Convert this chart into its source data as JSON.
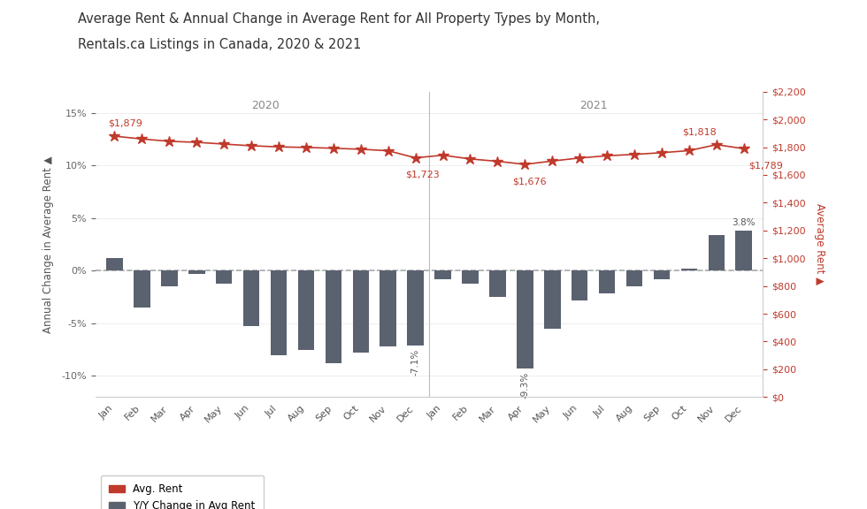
{
  "title_line1": "Average Rent & Annual Change in Average Rent for All Property Types by Month,",
  "title_line2": "Rentals.ca Listings in Canada, 2020 & 2021",
  "months_2020": [
    "Jan",
    "Feb",
    "Mar",
    "Apr",
    "May",
    "Jun",
    "Jul",
    "Aug",
    "Sep",
    "Oct",
    "Nov",
    "Dec"
  ],
  "months_2021": [
    "Jan",
    "Feb",
    "Mar",
    "Apr",
    "May",
    "Jun",
    "Jul",
    "Aug",
    "Sep",
    "Oct",
    "Nov",
    "Dec"
  ],
  "yoy_change": [
    1.2,
    -3.5,
    -1.5,
    -0.3,
    -1.2,
    -5.3,
    -8.0,
    -7.5,
    -8.8,
    -7.8,
    -7.2,
    -7.1,
    -0.8,
    -1.2,
    -2.5,
    -9.3,
    -5.5,
    -2.8,
    -2.2,
    -1.5,
    -0.8,
    0.2,
    3.4,
    3.8
  ],
  "avg_rent": [
    1879,
    1859,
    1842,
    1835,
    1822,
    1810,
    1802,
    1798,
    1792,
    1785,
    1774,
    1723,
    1742,
    1715,
    1698,
    1676,
    1700,
    1722,
    1738,
    1748,
    1760,
    1775,
    1818,
    1789
  ],
  "bar_color": "#5a6270",
  "line_color": "#c0392b",
  "dashed_line_color": "#aaaaaa",
  "background_color": "#ffffff",
  "plot_bg_color": "#ffffff",
  "ylabel_left": "Annual Change in Average Rent ▲",
  "ylabel_right": "Average Rent ▲",
  "ylim_left": [
    -12,
    17
  ],
  "ylim_right": [
    0,
    2200
  ],
  "yticks_left": [
    -10,
    -5,
    0,
    5,
    10,
    15
  ],
  "year_labels": [
    "2020",
    "2021"
  ],
  "annotated_rent_indices": [
    0,
    11,
    15,
    22,
    23
  ],
  "annotated_rent_values": [
    "$1,879",
    "$1,723",
    "$1,676",
    "$1,818",
    "$1,789"
  ],
  "annotated_change_indices": [
    11,
    15,
    23
  ],
  "annotated_change_values": [
    "-7.1%",
    "-9.3%",
    "3.8%"
  ],
  "legend_items": [
    "Avg. Rent",
    "Y/Y Change in Avg Rent"
  ]
}
